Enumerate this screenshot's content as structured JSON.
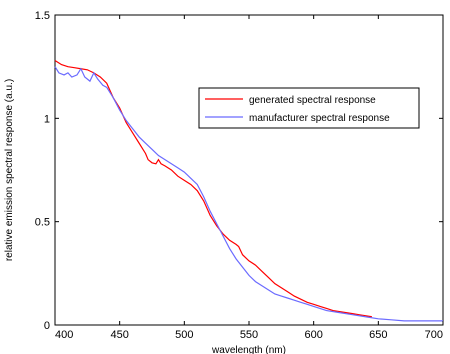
{
  "chart_data": {
    "type": "line",
    "title": "",
    "xlabel": "wavelength (nm)",
    "ylabel": "relative emission spectral response (a.u.)",
    "xlim": [
      400,
      700
    ],
    "ylim": [
      0,
      1.5
    ],
    "x_ticks": [
      400,
      450,
      500,
      550,
      600,
      650,
      700
    ],
    "x_tick_labels": [
      "400",
      "450",
      "500",
      "550",
      "600",
      "650",
      "700"
    ],
    "y_ticks": [
      0,
      0.5,
      1,
      1.5
    ],
    "y_tick_labels": [
      "0",
      "0.5",
      "1",
      "1.5"
    ],
    "grid": false,
    "legend_position": "top-right",
    "series": [
      {
        "name": "generated spectral response",
        "color": "#ff0000",
        "x": [
          400,
          405,
          410,
          415,
          420,
          425,
          430,
          435,
          440,
          445,
          450,
          455,
          460,
          465,
          470,
          472,
          475,
          478,
          480,
          482,
          485,
          490,
          495,
          500,
          505,
          510,
          515,
          520,
          525,
          530,
          535,
          540,
          542,
          545,
          550,
          555,
          560,
          565,
          570,
          575,
          580,
          585,
          590,
          595,
          600,
          605,
          610,
          615,
          620,
          625,
          630,
          635,
          640,
          645
        ],
        "y": [
          1.28,
          1.26,
          1.25,
          1.245,
          1.24,
          1.235,
          1.22,
          1.2,
          1.17,
          1.1,
          1.05,
          0.98,
          0.93,
          0.88,
          0.83,
          0.8,
          0.785,
          0.78,
          0.8,
          0.78,
          0.77,
          0.75,
          0.72,
          0.7,
          0.68,
          0.65,
          0.6,
          0.53,
          0.48,
          0.44,
          0.41,
          0.39,
          0.38,
          0.34,
          0.31,
          0.29,
          0.26,
          0.23,
          0.2,
          0.18,
          0.16,
          0.14,
          0.125,
          0.11,
          0.1,
          0.09,
          0.08,
          0.07,
          0.065,
          0.06,
          0.055,
          0.05,
          0.045,
          0.04
        ]
      },
      {
        "name": "manufacturer spectral response",
        "color": "#6b6bff",
        "x": [
          400,
          403,
          407,
          410,
          413,
          417,
          420,
          423,
          427,
          430,
          433,
          437,
          440,
          445,
          450,
          455,
          460,
          465,
          470,
          475,
          480,
          485,
          490,
          495,
          500,
          505,
          510,
          515,
          520,
          525,
          530,
          535,
          540,
          545,
          550,
          555,
          560,
          565,
          570,
          575,
          580,
          585,
          590,
          595,
          600,
          610,
          620,
          630,
          640,
          650,
          660,
          670,
          680,
          690,
          700
        ],
        "y": [
          1.25,
          1.22,
          1.21,
          1.22,
          1.2,
          1.21,
          1.24,
          1.2,
          1.18,
          1.22,
          1.19,
          1.16,
          1.15,
          1.1,
          1.04,
          0.99,
          0.95,
          0.91,
          0.88,
          0.85,
          0.82,
          0.8,
          0.78,
          0.76,
          0.74,
          0.71,
          0.68,
          0.62,
          0.55,
          0.49,
          0.43,
          0.37,
          0.32,
          0.28,
          0.24,
          0.21,
          0.19,
          0.17,
          0.15,
          0.14,
          0.13,
          0.12,
          0.11,
          0.1,
          0.09,
          0.07,
          0.06,
          0.05,
          0.04,
          0.03,
          0.025,
          0.02,
          0.02,
          0.02,
          0.02
        ]
      }
    ]
  }
}
